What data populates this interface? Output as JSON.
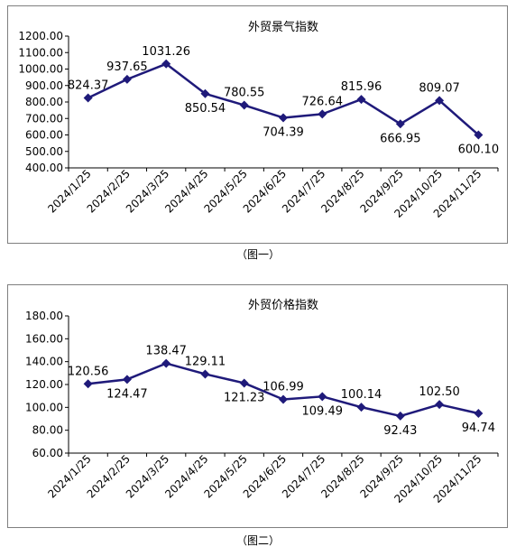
{
  "chart_data": [
    {
      "type": "line",
      "title": "外贸景气指数",
      "categories": [
        "2024/1/25",
        "2024/2/25",
        "2024/3/25",
        "2024/4/25",
        "2024/5/25",
        "2024/6/25",
        "2024/7/25",
        "2024/8/25",
        "2024/9/25",
        "2024/10/25",
        "2024/11/25"
      ],
      "series": [
        {
          "values": [
            824.37,
            937.65,
            1031.26,
            850.54,
            780.55,
            704.39,
            726.64,
            815.96,
            666.95,
            809.07,
            600.1
          ]
        }
      ],
      "value_labels": [
        "824.37",
        "937.65",
        "1031.26",
        "850.54",
        "780.55",
        "704.39",
        "726.64",
        "815.96",
        "666.95",
        "809.07",
        "600.10"
      ],
      "label_position": [
        "above",
        "above",
        "above",
        "below",
        "above",
        "below",
        "above",
        "above",
        "below",
        "above",
        "below"
      ],
      "ylim": [
        400,
        1200
      ],
      "yticks": [
        "400.00",
        "500.00",
        "600.00",
        "700.00",
        "800.00",
        "900.00",
        "1000.00",
        "1100.00",
        "1200.00"
      ],
      "grid": false,
      "line_color": "#1f1a7a",
      "caption": "（图一）"
    },
    {
      "type": "line",
      "title": "外贸价格指数",
      "categories": [
        "2024/1/25",
        "2024/2/25",
        "2024/3/25",
        "2024/4/25",
        "2024/5/25",
        "2024/6/25",
        "2024/7/25",
        "2024/8/25",
        "2024/9/25",
        "2024/10/25",
        "2024/11/25"
      ],
      "series": [
        {
          "values": [
            120.56,
            124.47,
            138.47,
            129.11,
            121.23,
            106.99,
            109.49,
            100.14,
            92.43,
            102.5,
            94.74
          ]
        }
      ],
      "value_labels": [
        "120.56",
        "124.47",
        "138.47",
        "129.11",
        "121.23",
        "106.99",
        "109.49",
        "100.14",
        "92.43",
        "102.50",
        "94.74"
      ],
      "label_position": [
        "above",
        "below",
        "above",
        "above",
        "below",
        "above",
        "below",
        "above",
        "below",
        "above",
        "below"
      ],
      "ylim": [
        60,
        180
      ],
      "yticks": [
        "60.00",
        "80.00",
        "100.00",
        "120.00",
        "140.00",
        "160.00",
        "180.00"
      ],
      "grid": false,
      "line_color": "#1f1a7a",
      "caption": "（图二）"
    }
  ]
}
